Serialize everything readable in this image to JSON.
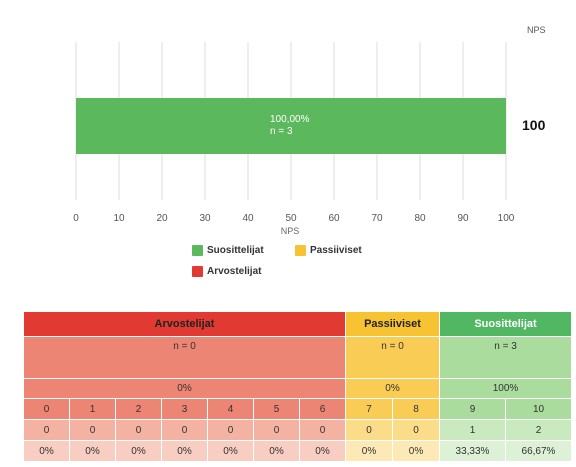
{
  "nps_header": "NPS",
  "nps_value": "100",
  "chart_data": {
    "type": "bar",
    "orientation": "horizontal",
    "xlabel": "NPS",
    "xlim": [
      0,
      100
    ],
    "xticks": [
      "0",
      "10",
      "20",
      "30",
      "40",
      "50",
      "60",
      "70",
      "80",
      "90",
      "100"
    ],
    "grid": true,
    "legend_position": "bottom",
    "series": [
      {
        "name": "Suosittelijat",
        "value": 100,
        "label": "100,00%",
        "n_label": "n = 3",
        "color": "#5cb85c"
      },
      {
        "name": "Passiiviset",
        "value": 0,
        "color": "#f8c333"
      },
      {
        "name": "Arvostelijat",
        "value": 0,
        "color": "#e03a33"
      }
    ]
  },
  "legend": [
    {
      "label": "Suosittelijat",
      "color": "#5cb85c"
    },
    {
      "label": "Passiiviset",
      "color": "#f8c333"
    },
    {
      "label": "Arvostelijat",
      "color": "#e03a33"
    }
  ],
  "table": {
    "groups": {
      "detractors": {
        "title": "Arvostelijat",
        "n": "n = 0",
        "percent": "0%"
      },
      "passives": {
        "title": "Passiiviset",
        "n": "n = 0",
        "percent": "0%"
      },
      "promoters": {
        "title": "Suosittelijat",
        "n": "n = 3",
        "percent": "100%"
      }
    },
    "scores": [
      "0",
      "1",
      "2",
      "3",
      "4",
      "5",
      "6",
      "7",
      "8",
      "9",
      "10"
    ],
    "counts": [
      "0",
      "0",
      "0",
      "0",
      "0",
      "0",
      "0",
      "0",
      "0",
      "1",
      "2"
    ],
    "shares": [
      "0%",
      "0%",
      "0%",
      "0%",
      "0%",
      "0%",
      "0%",
      "0%",
      "0%",
      "33,33%",
      "66,67%"
    ]
  }
}
